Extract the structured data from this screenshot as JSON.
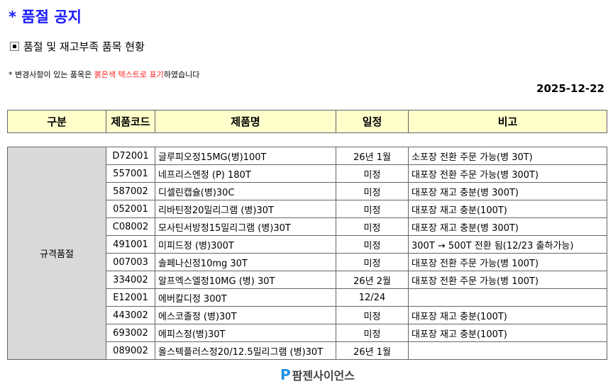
{
  "title": "* 품절 공지",
  "subtitle": "품절 및 재고부족 품목 현황",
  "note": {
    "prefix": "* 변경사항이 있는 품목은 ",
    "highlight": "붉은색 텍스트로 표기",
    "suffix": "하였습니다"
  },
  "date": "2025-12-22",
  "columns": [
    "구분",
    "제품코드",
    "제품명",
    "일정",
    "비고"
  ],
  "category": "규격품절",
  "rows": [
    [
      "D72001",
      "글루피오정15MG(병)100T",
      "26년 1월",
      "소포장 전환 주문 가능(병 30T)"
    ],
    [
      "557001",
      "네프리스엔정 (P) 180T",
      "미정",
      "대포장 전환 주문 가능(병 300T)"
    ],
    [
      "587002",
      "디셀린캡슐(병)30C",
      "미정",
      "대포장 재고 충분(병 300T)"
    ],
    [
      "052001",
      "리바틴정20밀리그램 (병)30T",
      "미정",
      "대포장 재고 충분(100T)"
    ],
    [
      "C08002",
      "모사틴서방정15밀리그램 (병)30T",
      "미정",
      "대포장 재고 충분(병 300T)"
    ],
    [
      "491001",
      "미피드정 (병)300T",
      "미정",
      "300T → 500T 전환 됨(12/23 출하가능)"
    ],
    [
      "007003",
      "솔페나신정10mg 30T",
      "미정",
      "대포장 전환 주문 가능(병 100T)"
    ],
    [
      "334002",
      "알프엑스엘정10MG (병) 30T",
      "26년 2월",
      "대포장 전환 주문 가능(병 100T)"
    ],
    [
      "E12001",
      "에버칼디정 300T",
      "12/24",
      ""
    ],
    [
      "443002",
      "에스코졸정 (병)30T",
      "미정",
      "대포장 재고 충분(100T)"
    ],
    [
      "693002",
      "에피스정(병)30T",
      "미정",
      "대포장 재고 충분(100T)"
    ],
    [
      "089002",
      "올스텍플러스정20/12.5밀리그램 (병)30T",
      "26년 1월",
      ""
    ]
  ],
  "logo": {
    "mark": "P",
    "text": "팜젠사이언스"
  },
  "colors": {
    "title": "#1a1aff",
    "highlight": "#ff2020",
    "header_bg": "#ffffcc",
    "category_bg": "#d9d9d9"
  }
}
